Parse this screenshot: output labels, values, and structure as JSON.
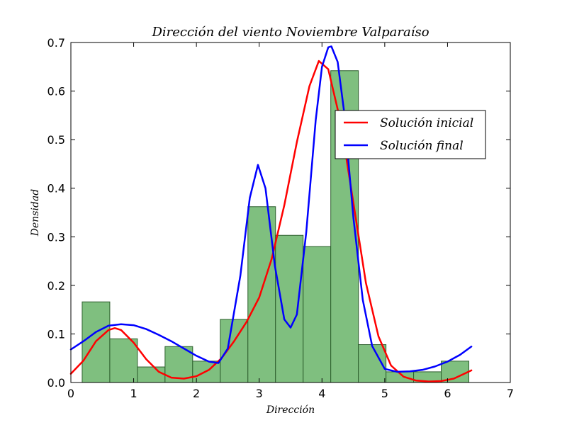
{
  "chart_data": {
    "type": "histogram+line",
    "title": "Dirección del viento Noviembre Valparaíso",
    "xlabel": "Dirección",
    "ylabel": "Densidad",
    "xlim": [
      0,
      7
    ],
    "ylim": [
      0,
      0.7
    ],
    "x_ticks": [
      "0",
      "1",
      "2",
      "3",
      "4",
      "5",
      "6",
      "7"
    ],
    "y_ticks": [
      "0.0",
      "0.1",
      "0.2",
      "0.3",
      "0.4",
      "0.5",
      "0.6",
      "0.7"
    ],
    "legend_position": "upper-right",
    "histogram": {
      "color": "#7fbf7f",
      "edge_color": "#2e5f2e",
      "bin_edges": [
        0.18,
        0.62,
        1.06,
        1.5,
        1.94,
        2.38,
        2.82,
        3.26,
        3.7,
        4.14,
        4.58,
        5.02,
        5.46,
        5.9,
        6.34
      ],
      "densities": [
        0.166,
        0.09,
        0.032,
        0.074,
        0.044,
        0.13,
        0.362,
        0.303,
        0.28,
        0.642,
        0.078,
        0.022,
        0.022,
        0.044
      ]
    },
    "series": [
      {
        "name": "Solución inicial",
        "color": "#ff0000",
        "x": [
          0.0,
          0.2,
          0.4,
          0.6,
          0.7,
          0.8,
          1.0,
          1.2,
          1.4,
          1.6,
          1.8,
          2.0,
          2.2,
          2.4,
          2.6,
          2.8,
          3.0,
          3.2,
          3.4,
          3.6,
          3.8,
          3.95,
          4.1,
          4.3,
          4.5,
          4.7,
          4.9,
          5.1,
          5.3,
          5.5,
          5.7,
          5.9,
          6.1,
          6.3,
          6.38
        ],
        "y": [
          0.018,
          0.045,
          0.085,
          0.108,
          0.112,
          0.108,
          0.082,
          0.048,
          0.022,
          0.01,
          0.008,
          0.013,
          0.026,
          0.05,
          0.085,
          0.125,
          0.175,
          0.255,
          0.365,
          0.495,
          0.61,
          0.662,
          0.645,
          0.535,
          0.37,
          0.205,
          0.095,
          0.035,
          0.012,
          0.004,
          0.002,
          0.003,
          0.008,
          0.02,
          0.025
        ]
      },
      {
        "name": "Solución final",
        "color": "#0000ff",
        "x": [
          0.0,
          0.2,
          0.4,
          0.6,
          0.8,
          1.0,
          1.2,
          1.4,
          1.6,
          1.8,
          2.0,
          2.2,
          2.35,
          2.5,
          2.7,
          2.85,
          2.98,
          3.1,
          3.25,
          3.4,
          3.5,
          3.6,
          3.75,
          3.9,
          4.0,
          4.1,
          4.15,
          4.25,
          4.35,
          4.5,
          4.65,
          4.8,
          5.0,
          5.2,
          5.4,
          5.6,
          5.8,
          6.0,
          6.2,
          6.38
        ],
        "y": [
          0.068,
          0.085,
          0.104,
          0.117,
          0.12,
          0.118,
          0.11,
          0.098,
          0.085,
          0.07,
          0.055,
          0.043,
          0.04,
          0.07,
          0.22,
          0.38,
          0.448,
          0.4,
          0.24,
          0.13,
          0.113,
          0.14,
          0.31,
          0.54,
          0.65,
          0.69,
          0.692,
          0.66,
          0.56,
          0.34,
          0.17,
          0.075,
          0.028,
          0.022,
          0.023,
          0.026,
          0.033,
          0.043,
          0.057,
          0.074
        ]
      }
    ]
  }
}
